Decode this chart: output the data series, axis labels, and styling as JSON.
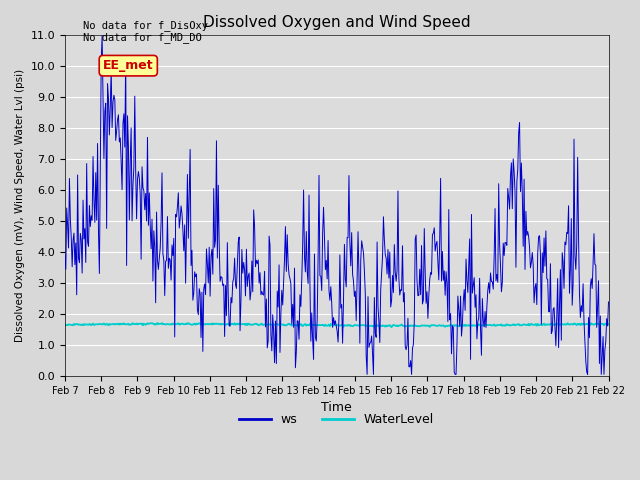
{
  "title": "Dissolved Oxygen and Wind Speed",
  "ylabel": "Dissolved Oxygen (mV), Wind Speed, Water Lvl (psi)",
  "xlabel": "Time",
  "annotation_lines": [
    "No data for f_DisOxy",
    "No data for f_MD_DO"
  ],
  "legend_label": "EE_met",
  "legend_label_color": "#cc0000",
  "legend_label_bg": "#ffff99",
  "ws_color": "#0000cc",
  "water_color": "#00cccc",
  "bg_color": "#d8d8d8",
  "plot_bg_color": "#dcdcdc",
  "ylim": [
    0.0,
    11.0
  ],
  "yticks": [
    0.0,
    1.0,
    2.0,
    3.0,
    4.0,
    5.0,
    6.0,
    7.0,
    8.0,
    9.0,
    10.0,
    11.0
  ],
  "xtick_labels": [
    "Feb 7",
    "Feb 8",
    "Feb 9",
    "Feb 10",
    "Feb 11",
    "Feb 12",
    "Feb 13",
    "Feb 14",
    "Feb 15",
    "Feb 16",
    "Feb 17",
    "Feb 18",
    "Feb 19",
    "Feb 20",
    "Feb 21",
    "Feb 22"
  ],
  "num_points": 600,
  "figwidth": 6.4,
  "figheight": 4.8,
  "dpi": 100
}
